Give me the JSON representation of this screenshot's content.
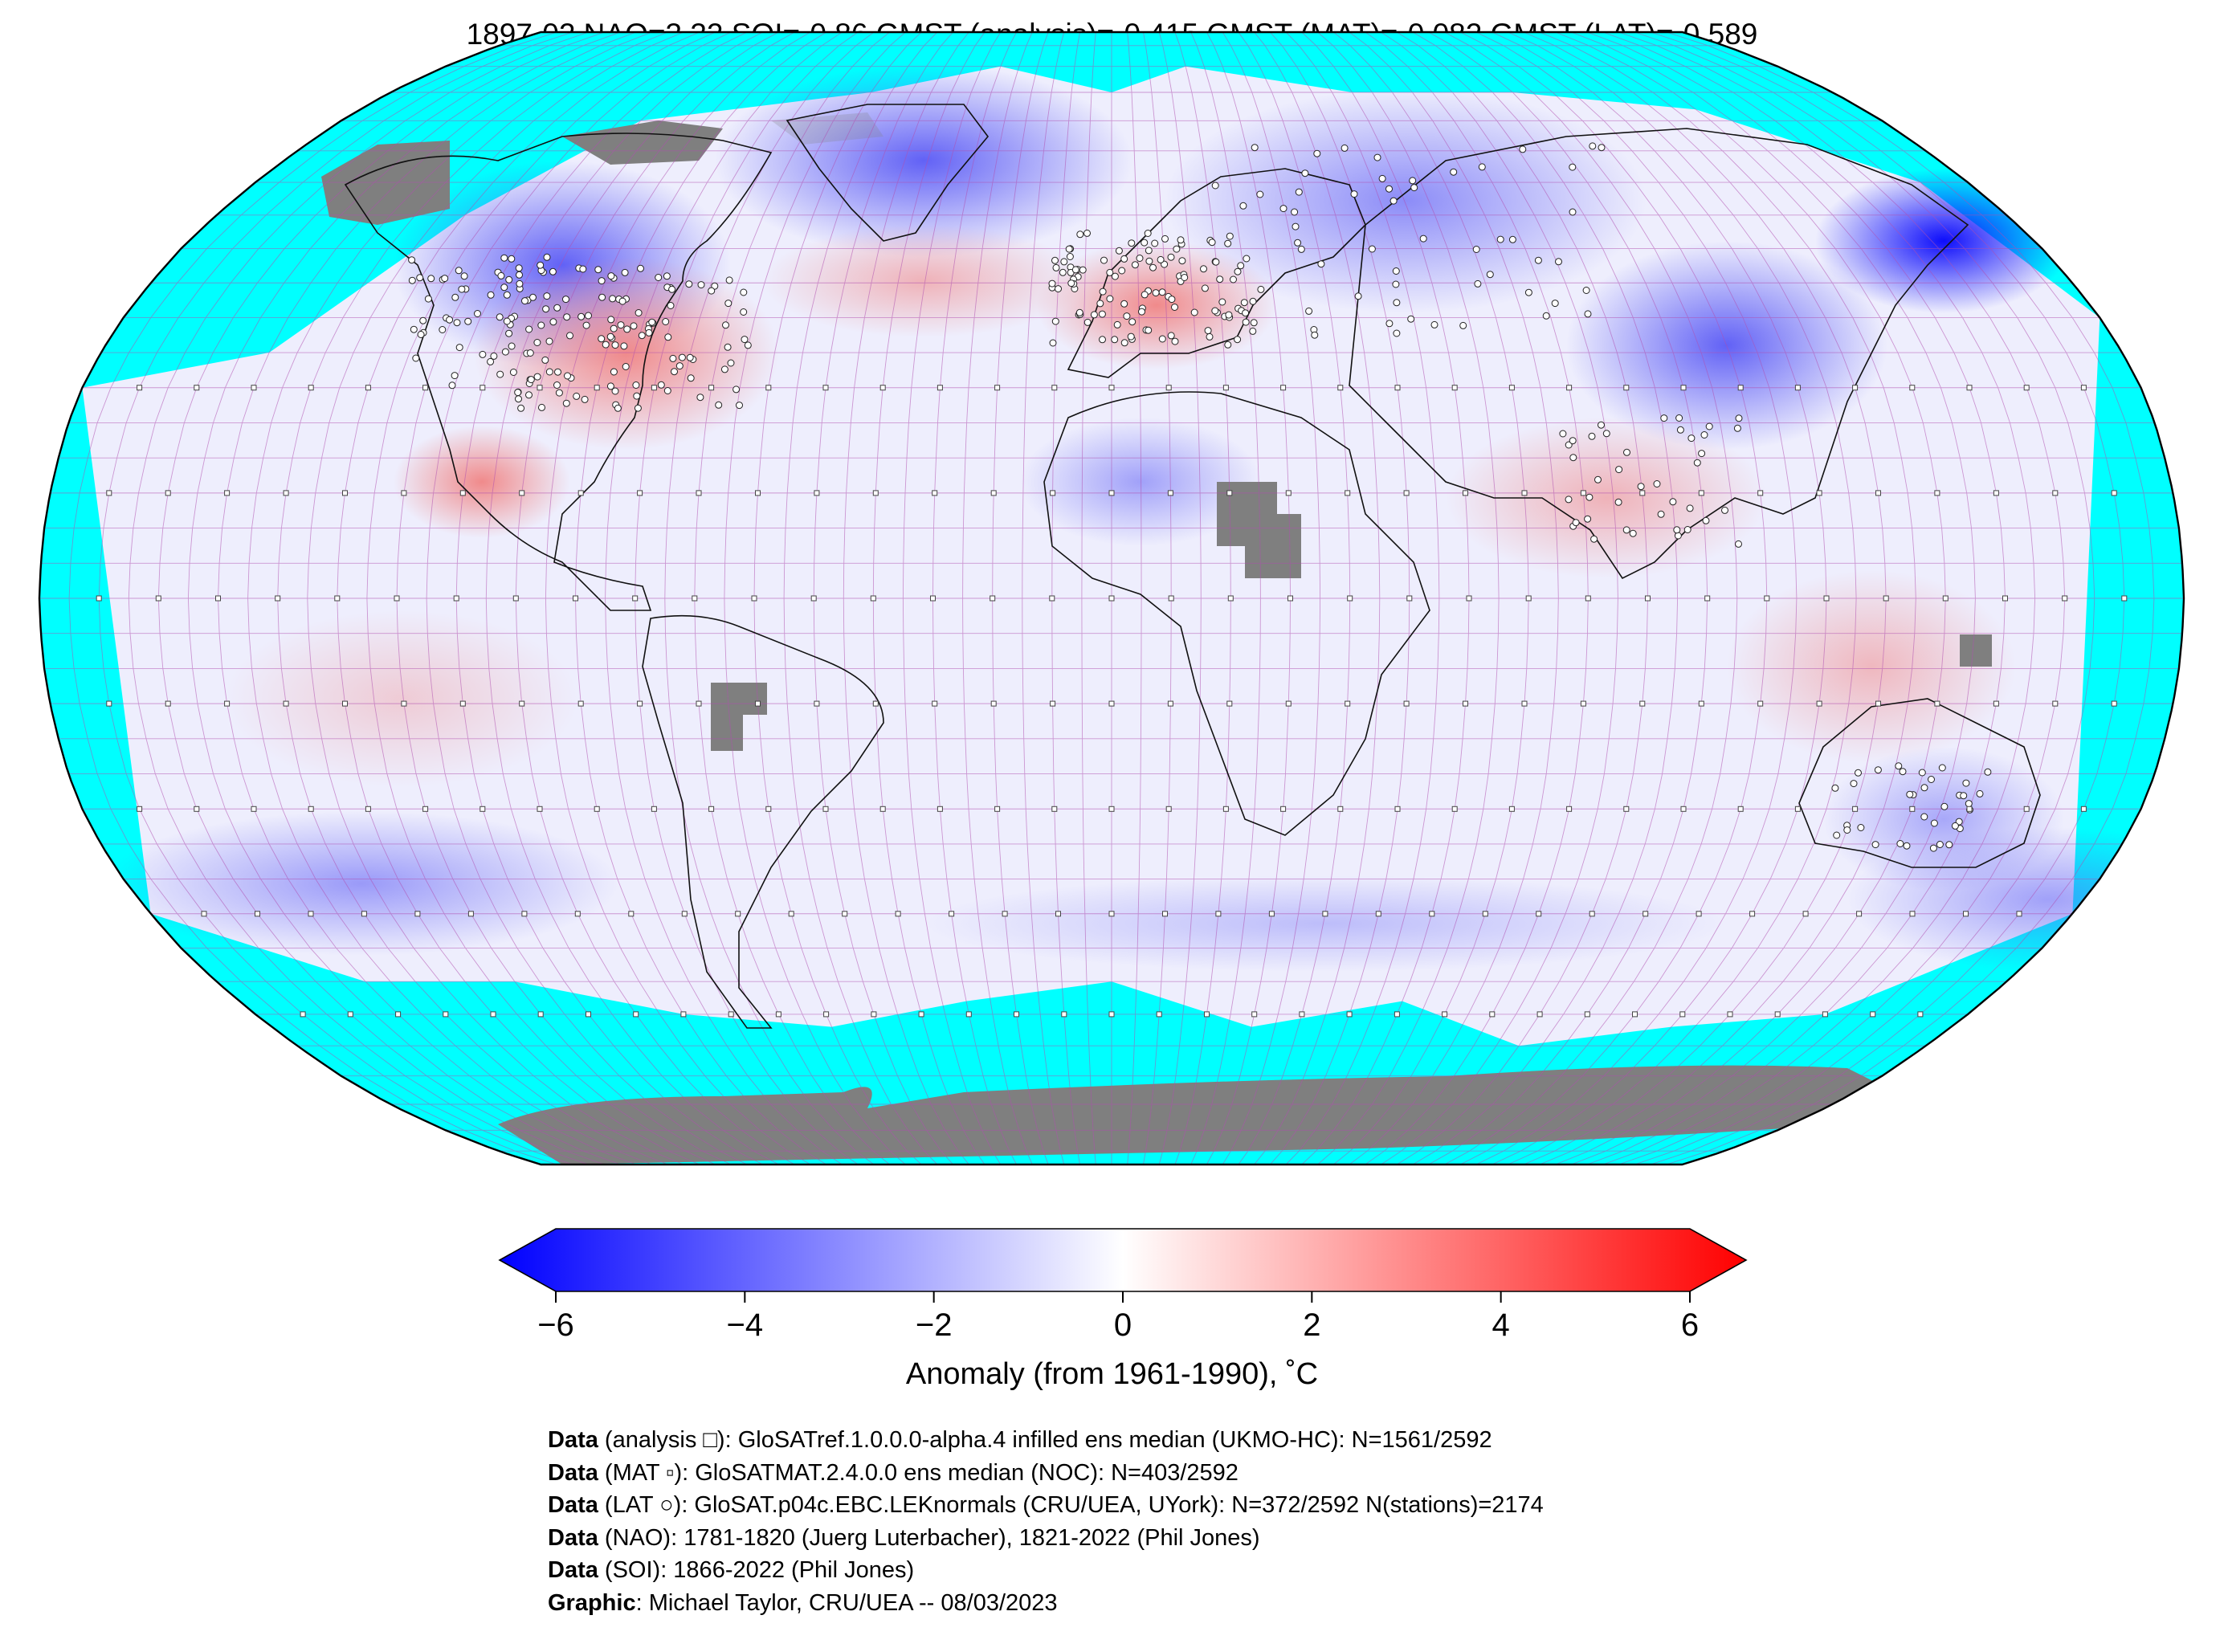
{
  "title": "1897-02 NAO=3.32 SOI=-0.86 GMST (analysis)=-0.415 GMST (MAT)=-0.082 GMST (LAT)=-0.589",
  "map": {
    "projection": "Robinson",
    "ocean_no_data_color": "#00ffff",
    "land_no_data_color": "#808080",
    "grid_line_color": "#b04fb0",
    "anomaly_regions": [
      {
        "region": "Greenland / N Atlantic",
        "sign": "negative",
        "strength": "strong"
      },
      {
        "region": "NE Asia / Okhotsk",
        "sign": "negative",
        "strength": "very strong"
      },
      {
        "region": "Eastern USA",
        "sign": "positive",
        "strength": "moderate"
      },
      {
        "region": "Central Europe",
        "sign": "positive",
        "strength": "moderate"
      },
      {
        "region": "Western Canada",
        "sign": "negative",
        "strength": "moderate"
      },
      {
        "region": "East Asia",
        "sign": "negative",
        "strength": "moderate"
      },
      {
        "region": "South Asia",
        "sign": "positive",
        "strength": "weak"
      },
      {
        "region": "Maritime Continent / Australia",
        "sign": "positive",
        "strength": "weak"
      },
      {
        "region": "Southern Ocean",
        "sign": "negative",
        "strength": "weak"
      }
    ]
  },
  "colorbar": {
    "colormap": "bwr",
    "min_color": "#0000ff",
    "mid_color": "#ffffff",
    "max_color": "#ff0000",
    "range": [
      -6,
      6
    ],
    "ticks": [
      "−6",
      "−4",
      "−2",
      "0",
      "2",
      "4",
      "6"
    ],
    "extend": "both",
    "label": "Anomaly (from 1961-1990), ˚C"
  },
  "credits": [
    {
      "bold": "Data",
      "text": " (analysis □): GloSATref.1.0.0.0-alpha.4 infilled ens median (UKMO-HC): N=1561/2592"
    },
    {
      "bold": "Data",
      "text": " (MAT ▫): GloSATMAT.2.4.0.0 ens median (NOC): N=403/2592"
    },
    {
      "bold": "Data",
      "text": " (LAT ○): GloSAT.p04c.EBC.LEKnormals (CRU/UEA, UYork): N=372/2592 N(stations)=2174"
    },
    {
      "bold": "Data",
      "text": " (NAO): 1781-1820 (Juerg Luterbacher), 1821-2022 (Phil Jones)"
    },
    {
      "bold": "Data",
      "text": " (SOI): 1866-2022 (Phil Jones)"
    },
    {
      "bold": "Graphic",
      "text": ": Michael Taylor, CRU/UEA -- 08/03/2023"
    }
  ]
}
